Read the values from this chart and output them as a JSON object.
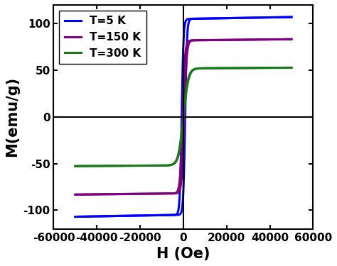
{
  "title": "",
  "xlabel": "H (Oe)",
  "ylabel": "M(emu/g)",
  "xlim": [
    -55000,
    55000
  ],
  "ylim": [
    -120,
    120
  ],
  "xticks": [
    -60000,
    -40000,
    -20000,
    0,
    20000,
    40000,
    60000
  ],
  "yticks": [
    -100,
    -50,
    0,
    50,
    100
  ],
  "curves": [
    {
      "label": "T=5 K",
      "color": "#0000FF",
      "Ms": 105,
      "Hc": 800,
      "sharpness": 0.0012,
      "slope": 4e-05
    },
    {
      "label": "T=150 K",
      "color": "#800080",
      "Ms": 82,
      "Hc": 400,
      "sharpness": 0.0009,
      "slope": 2.5e-05
    },
    {
      "label": "T=300 K",
      "color": "#1a7a1a",
      "Ms": 52,
      "Hc": 100,
      "sharpness": 0.00045,
      "slope": 1.5e-05
    }
  ],
  "background_color": "#ffffff",
  "linewidth": 2.2,
  "legend_fontsize": 11,
  "axis_label_fontsize": 15,
  "tick_labelsize": 11
}
